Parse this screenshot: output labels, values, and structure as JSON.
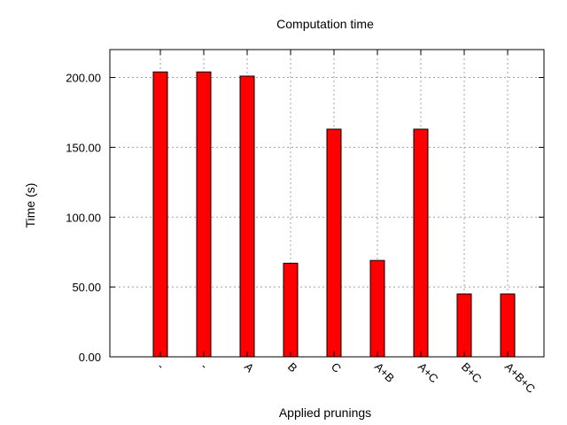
{
  "chart_data": {
    "type": "bar",
    "title": "Computation time",
    "xlabel": "Applied prunings",
    "ylabel": "Time (s)",
    "categories": [
      "-",
      "-",
      "A",
      "B",
      "C",
      "A+B",
      "A+C",
      "B+C",
      "A+B+C"
    ],
    "values": [
      204,
      204,
      201,
      67,
      163,
      69,
      163,
      45,
      45
    ],
    "ylim": [
      0,
      220
    ],
    "yticks": [
      "0.00",
      "50.00",
      "100.00",
      "150.00",
      "200.00"
    ],
    "grid": true,
    "bar_color": "#ff0000",
    "bar_edge_color": "#000000"
  }
}
